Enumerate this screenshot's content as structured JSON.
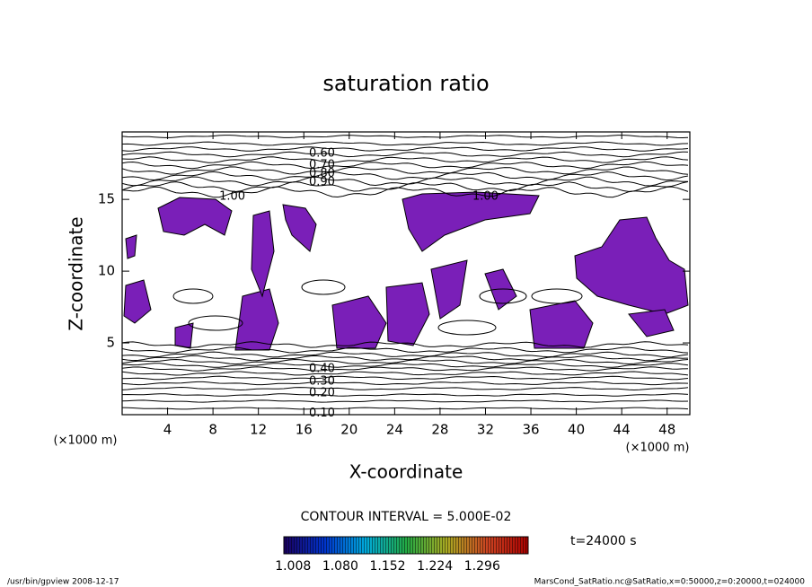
{
  "chart_data": {
    "type": "contour",
    "title": "saturation ratio",
    "xlabel": "X-coordinate",
    "ylabel": "Z-coordinate",
    "xunit": "(×1000 m)",
    "yunit": "(×1000 m)",
    "xlim": [
      0,
      50
    ],
    "ylim": [
      0,
      19.7
    ],
    "xticks": [
      4,
      8,
      12,
      16,
      20,
      24,
      28,
      32,
      36,
      40,
      44,
      48
    ],
    "yticks": [
      5,
      10,
      15
    ],
    "fill_color": "#7a1fb8",
    "contour_labels": [
      {
        "text": "0.60",
        "x": 17.6,
        "y": 18.2
      },
      {
        "text": "0.70",
        "x": 17.6,
        "y": 17.4
      },
      {
        "text": "0.80",
        "x": 17.6,
        "y": 16.8
      },
      {
        "text": "0.90",
        "x": 17.6,
        "y": 16.2
      },
      {
        "text": "1.00",
        "x": 9.7,
        "y": 15.2
      },
      {
        "text": "1.00",
        "x": 32,
        "y": 15.2
      },
      {
        "text": "0.40",
        "x": 17.6,
        "y": 3.2
      },
      {
        "text": "0.30",
        "x": 17.6,
        "y": 2.3
      },
      {
        "text": "0.20",
        "x": 17.6,
        "y": 1.5
      },
      {
        "text": "0.10",
        "x": 17.6,
        "y": 0.1
      }
    ],
    "contour_interval": "CONTOUR INTERVAL = 5.000E-02",
    "time_label": "t=24000 s",
    "colorbar": {
      "clim": [
        0.994,
        1.366
      ],
      "colors": [
        "#1a0060",
        "#0033cc",
        "#00aadd",
        "#22aa44",
        "#aaaa22",
        "#cc4422",
        "#aa0000"
      ],
      "ticks": [
        {
          "value": 1.008,
          "label": "1.008"
        },
        {
          "value": 1.08,
          "label": "1.080"
        },
        {
          "value": 1.152,
          "label": "1.152"
        },
        {
          "value": 1.224,
          "label": "1.224"
        },
        {
          "value": 1.296,
          "label": "1.296"
        }
      ]
    },
    "footer_left": "/usr/bin/gpview  2008-12-17",
    "footer_right": "MarsCond_SatRatio.nc@SatRatio,x=0:50000,z=0:20000,t=024000"
  }
}
